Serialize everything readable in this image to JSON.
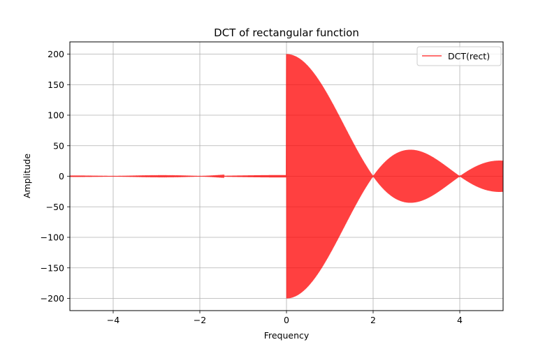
{
  "chart_data": {
    "type": "line",
    "title": "DCT of rectangular function",
    "xlabel": "Frequency",
    "ylabel": "Amplitude",
    "xlim": [
      -5,
      5
    ],
    "ylim": [
      -220,
      220
    ],
    "xticks": [
      -4,
      -2,
      0,
      2,
      4
    ],
    "xtick_labels": [
      "−4",
      "−2",
      "0",
      "2",
      "4"
    ],
    "yticks": [
      -200,
      -150,
      -100,
      -50,
      0,
      50,
      100,
      150,
      200
    ],
    "yticks_labels": [
      "−200",
      "−150",
      "−100",
      "−50",
      "0",
      "50",
      "100",
      "150",
      "200"
    ],
    "grid": true,
    "legend_position": "top-right",
    "series": [
      {
        "name": "DCT(rect)",
        "color": "#ff0000",
        "alpha": 0.75,
        "description_values": {
          "negative_side": "near-zero ripple, peak |amp| about 2",
          "positive_side_envelope": [
            {
              "x": 0,
              "amp": 200
            },
            {
              "x": 0.5,
              "amp": 180
            },
            {
              "x": 1,
              "amp": 127
            },
            {
              "x": 1.5,
              "amp": 60
            },
            {
              "x": 2,
              "amp": 0
            },
            {
              "x": 2.87,
              "amp": 43
            },
            {
              "x": 4,
              "amp": 0
            },
            {
              "x": 5,
              "amp": 25
            }
          ]
        }
      }
    ]
  }
}
